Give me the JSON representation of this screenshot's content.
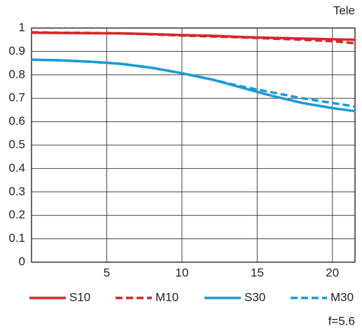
{
  "chart_data": {
    "type": "line",
    "title": "Tele",
    "annotation": "f=5.6",
    "x": [
      0,
      2,
      4,
      6,
      8,
      10,
      12,
      14,
      16,
      18,
      20,
      21.5
    ],
    "series": [
      {
        "name": "S10",
        "color": "#d7262b",
        "dashed": false,
        "values": [
          0.98,
          0.979,
          0.978,
          0.977,
          0.974,
          0.97,
          0.967,
          0.962,
          0.958,
          0.955,
          0.952,
          0.95
        ]
      },
      {
        "name": "M10",
        "color": "#d7262b",
        "dashed": true,
        "values": [
          0.982,
          0.98,
          0.979,
          0.977,
          0.973,
          0.968,
          0.964,
          0.96,
          0.955,
          0.95,
          0.944,
          0.935
        ]
      },
      {
        "name": "S30",
        "color": "#1a9ad6",
        "dashed": false,
        "values": [
          0.865,
          0.862,
          0.856,
          0.847,
          0.83,
          0.807,
          0.78,
          0.745,
          0.71,
          0.68,
          0.658,
          0.645
        ]
      },
      {
        "name": "M30",
        "color": "#1a9ad6",
        "dashed": true,
        "values": [
          0.865,
          0.862,
          0.856,
          0.847,
          0.83,
          0.807,
          0.78,
          0.75,
          0.725,
          0.7,
          0.68,
          0.665
        ]
      }
    ],
    "xlim": [
      0,
      21.5
    ],
    "xticks": [
      5,
      10,
      15,
      20
    ],
    "ylim": [
      0,
      1
    ],
    "yticks": [
      0,
      0.1,
      0.2,
      0.3,
      0.4,
      0.5,
      0.6,
      0.7,
      0.8,
      0.9,
      1
    ],
    "grid": true
  }
}
